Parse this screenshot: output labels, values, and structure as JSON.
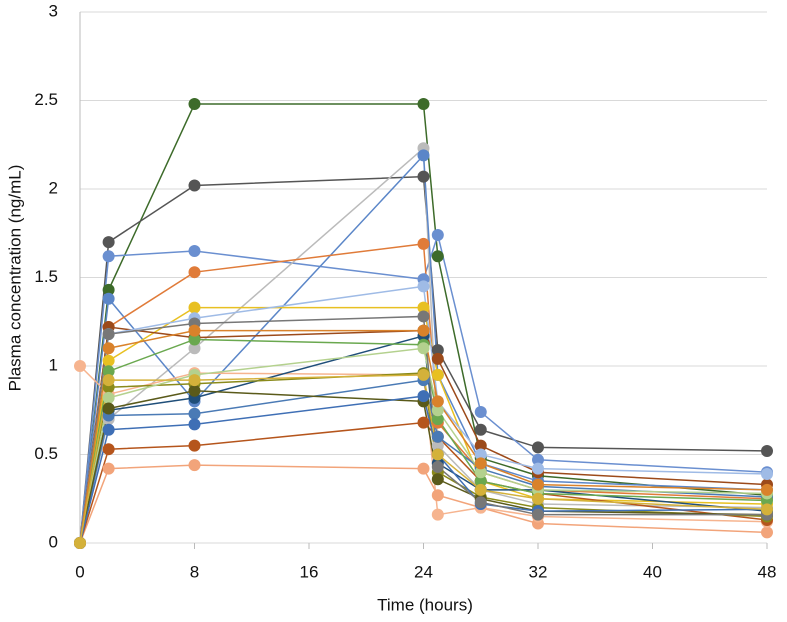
{
  "chart_data": {
    "type": "line",
    "xlabel": "Time (hours)",
    "ylabel": "Plasma concentration (ng/mL)",
    "x": [
      0,
      2,
      8,
      24,
      25,
      28,
      32,
      48
    ],
    "xlim": [
      0,
      48
    ],
    "xticks": [
      0,
      8,
      16,
      24,
      32,
      40,
      48
    ],
    "ylim": [
      0,
      3
    ],
    "yticks": [
      0,
      0.5,
      1,
      1.5,
      2,
      2.5,
      3
    ],
    "grid": true,
    "series": [
      {
        "color": "#3d6b2a",
        "values": [
          0,
          1.43,
          2.48,
          2.48,
          1.62,
          0.48,
          0.38,
          0.27
        ]
      },
      {
        "color": "#555555",
        "values": [
          0,
          1.7,
          2.02,
          2.07,
          1.09,
          0.64,
          0.54,
          0.52
        ]
      },
      {
        "color": "#6a8fd0",
        "values": [
          0,
          1.62,
          1.65,
          1.49,
          1.74,
          0.74,
          0.47,
          0.4
        ]
      },
      {
        "color": "#bbbbbb",
        "values": [
          0,
          0.7,
          1.1,
          2.23,
          0.55,
          0.3,
          0.22,
          0.2
        ]
      },
      {
        "color": "#5b86c8",
        "values": [
          0,
          1.38,
          0.8,
          2.19,
          0.95,
          0.45,
          0.35,
          0.3
        ]
      },
      {
        "color": "#e07b39",
        "values": [
          0,
          1.22,
          1.53,
          1.69,
          0.68,
          0.4,
          0.3,
          0.25
        ]
      },
      {
        "color": "#e8c022",
        "values": [
          0,
          1.03,
          1.33,
          1.33,
          0.95,
          0.35,
          0.25,
          0.22
        ]
      },
      {
        "color": "#9c4a1a",
        "values": [
          0,
          1.22,
          1.16,
          1.2,
          1.04,
          0.55,
          0.4,
          0.33
        ]
      },
      {
        "color": "#f2a47a",
        "values": [
          0,
          0.42,
          0.44,
          0.42,
          0.27,
          0.2,
          0.11,
          0.06
        ]
      },
      {
        "color": "#f6b48f",
        "values": [
          1.0,
          0.84,
          0.96,
          0.95,
          0.16,
          0.2,
          0.15,
          0.12
        ]
      },
      {
        "color": "#b5551c",
        "values": [
          0,
          0.53,
          0.55,
          0.68,
          0.6,
          0.35,
          0.28,
          0.13
        ]
      },
      {
        "color": "#1f4e79",
        "values": [
          0,
          0.75,
          0.82,
          1.17,
          0.45,
          0.3,
          0.3,
          0.18
        ]
      },
      {
        "color": "#4a7ab5",
        "values": [
          0,
          0.72,
          0.73,
          0.92,
          0.6,
          0.42,
          0.32,
          0.26
        ]
      },
      {
        "color": "#8a8a1a",
        "values": [
          0,
          0.88,
          0.9,
          0.96,
          0.4,
          0.26,
          0.2,
          0.15
        ]
      },
      {
        "color": "#9fbbe6",
        "values": [
          0,
          1.18,
          1.27,
          1.45,
          0.8,
          0.5,
          0.42,
          0.39
        ]
      },
      {
        "color": "#6aa84f",
        "values": [
          0,
          0.97,
          1.15,
          1.12,
          0.7,
          0.35,
          0.28,
          0.24
        ]
      },
      {
        "color": "#b4d18e",
        "values": [
          0,
          0.82,
          0.95,
          1.1,
          0.75,
          0.4,
          0.3,
          0.28
        ]
      },
      {
        "color": "#5a5a1a",
        "values": [
          0,
          0.76,
          0.86,
          0.8,
          0.36,
          0.25,
          0.18,
          0.16
        ]
      },
      {
        "color": "#3f6fb5",
        "values": [
          0,
          0.64,
          0.67,
          0.83,
          0.5,
          0.22,
          0.18,
          0.19
        ]
      },
      {
        "color": "#777777",
        "values": [
          0,
          1.18,
          1.24,
          1.28,
          0.43,
          0.23,
          0.16,
          0.16
        ]
      },
      {
        "color": "#d9822b",
        "values": [
          0,
          1.1,
          1.2,
          1.2,
          0.8,
          0.45,
          0.33,
          0.3
        ]
      },
      {
        "color": "#d4b13a",
        "values": [
          0,
          0.92,
          0.92,
          0.95,
          0.5,
          0.3,
          0.25,
          0.19
        ]
      }
    ]
  }
}
